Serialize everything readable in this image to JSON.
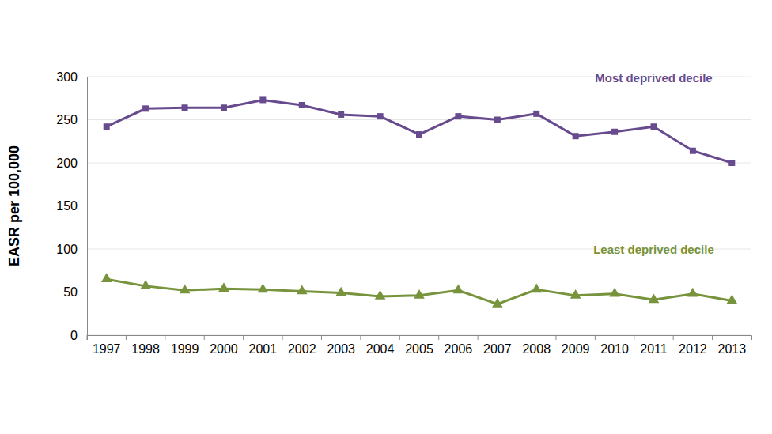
{
  "chart_data": {
    "type": "line",
    "y_label": "EASR per 100,000",
    "categories": [
      "1997",
      "1998",
      "1999",
      "2000",
      "2001",
      "2002",
      "2003",
      "2004",
      "2005",
      "2006",
      "2007",
      "2008",
      "2009",
      "2010",
      "2011",
      "2012",
      "2013"
    ],
    "series": [
      {
        "name": "Most deprived decile",
        "color": "#674b8e",
        "marker": "square",
        "values": [
          242,
          263,
          264,
          264,
          273,
          267,
          256,
          254,
          233,
          254,
          250,
          257,
          231,
          236,
          242,
          214,
          200
        ]
      },
      {
        "name": "Least deprived decile",
        "color": "#77933c",
        "marker": "triangle",
        "values": [
          65,
          57,
          52,
          54,
          53,
          51,
          49,
          45,
          46,
          52,
          36,
          53,
          46,
          48,
          41,
          48,
          40
        ]
      }
    ],
    "ylim": [
      0,
      300
    ],
    "yticks": [
      0,
      50,
      100,
      150,
      200,
      250,
      300
    ],
    "grid": true
  }
}
